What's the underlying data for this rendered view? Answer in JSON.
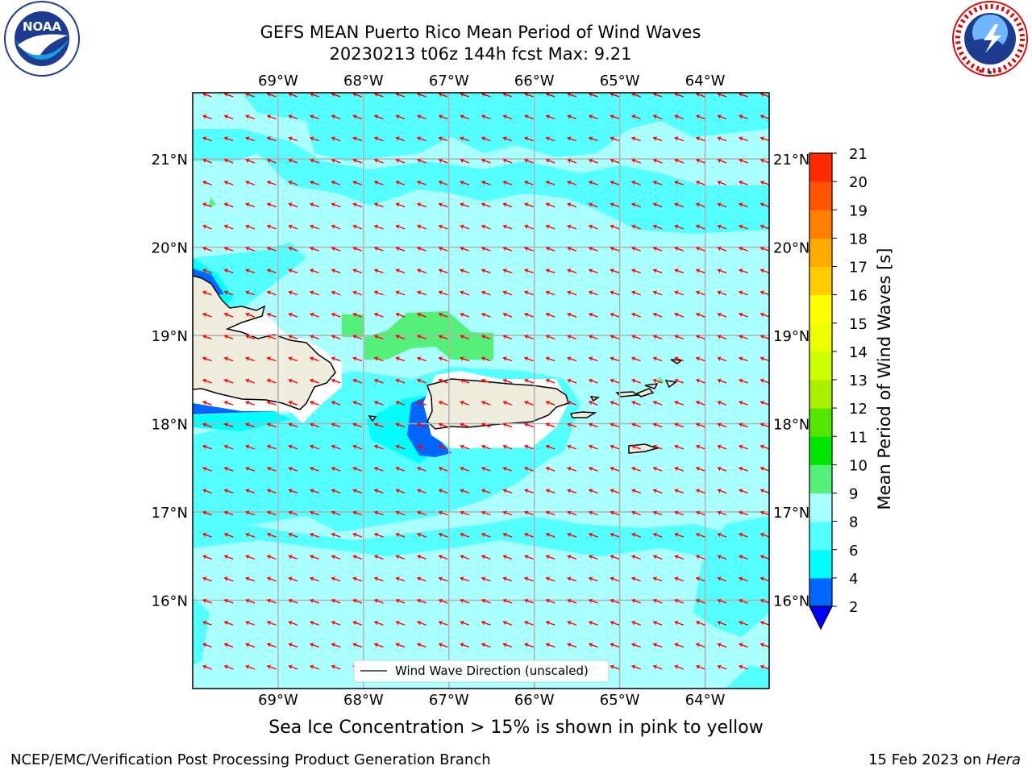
{
  "header": {
    "title_line1": "GEFS MEAN Puerto Rico Mean Period of Wind Waves",
    "title_line2": "20230213 t06z 144h fcst   Max: 9.21"
  },
  "logos": {
    "left": {
      "name": "noaa-logo",
      "text": "NOAA",
      "ring_text": "NATIONAL OCEANIC AND ATMOSPHERIC ADMINISTRATION · U.S. DEPARTMENT OF COMMERCE"
    },
    "right": {
      "name": "nws-logo",
      "ring_text": "NATIONAL WEATHER SERVICE"
    }
  },
  "map": {
    "lon_labels": [
      "69°W",
      "68°W",
      "67°W",
      "66°W",
      "65°W",
      "64°W"
    ],
    "lat_labels": [
      "21°N",
      "20°N",
      "19°N",
      "18°N",
      "17°N",
      "16°N"
    ],
    "lon_range": [
      -70.0,
      -63.25
    ],
    "lat_range": [
      15.0,
      21.75
    ],
    "legend_label": "Wind Wave Direction (unscaled)",
    "arrow_color": "#ff0000",
    "land_color": "#efeddd",
    "fill_dominant": "#aaffff",
    "fill_secondary": "#55ffff"
  },
  "colorbar": {
    "label": "Mean Period of Wind Waves [s]",
    "ticks": [
      "2",
      "4",
      "6",
      "8",
      "9",
      "10",
      "11",
      "12",
      "13",
      "14",
      "15",
      "16",
      "17",
      "18",
      "19",
      "20",
      "21"
    ],
    "colors": [
      "#0066ff",
      "#00ffff",
      "#55ffff",
      "#aaffff",
      "#55f07a",
      "#00e600",
      "#55e600",
      "#aaee00",
      "#ccff00",
      "#eeff00",
      "#ffff00",
      "#ffcc00",
      "#ffaa00",
      "#ff8000",
      "#ff5500",
      "#ff2a00",
      "#ff0000"
    ],
    "under_color": "#0000ff"
  },
  "notes": {
    "ice": "Sea Ice Concentration > 15% is shown in pink to yellow"
  },
  "footer": {
    "left": "NCEP/EMC/Verification Post Processing Product Generation Branch",
    "date": "15 Feb 2023 on ",
    "machine": "Hera"
  }
}
